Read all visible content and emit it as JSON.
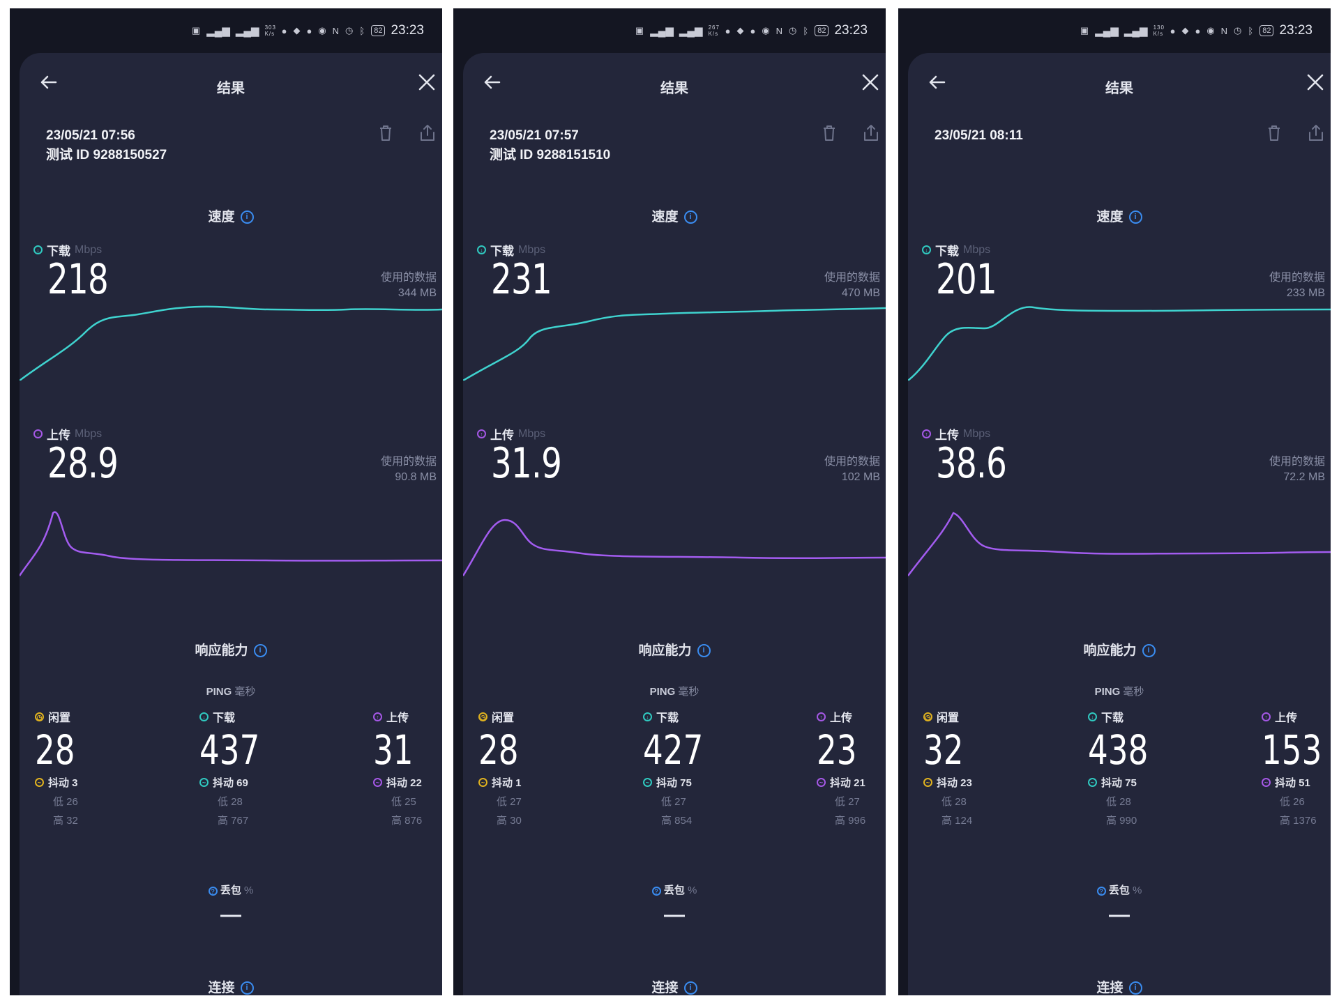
{
  "statusbar": {
    "icons": [
      "nfc-icon",
      "signal-icon",
      "signal-icon",
      "speed-icon",
      "wechat-icon",
      "shield-icon",
      "wechat-icon",
      "eye-icon",
      "n-icon",
      "alarm-icon",
      "bluetooth-icon",
      "battery-icon"
    ],
    "battery_level": "82",
    "time": "23:23"
  },
  "panels": [
    {
      "status_speed": "303 K/s",
      "nav": {
        "title": "结果"
      },
      "date": "23/05/21 07:56",
      "test_id": "测试 ID 9288150527",
      "speed_section": "速度",
      "download": {
        "label": "下载",
        "unit": "Mbps",
        "value": "218",
        "data_used_label": "使用的数据",
        "data_used": "344 MB"
      },
      "upload": {
        "label": "上传",
        "unit": "Mbps",
        "value": "28.9",
        "data_used_label": "使用的数据",
        "data_used": "90.8 MB"
      },
      "responsiveness": "响应能力",
      "ping_title": "PING",
      "ping_unit": "毫秒",
      "ping": [
        {
          "label": "闲置",
          "value": "28",
          "jitter": "抖动 3",
          "low": "低 26",
          "high": "高 32",
          "color": "#e0b21f"
        },
        {
          "label": "下载",
          "value": "437",
          "jitter": "抖动 69",
          "low": "低 28",
          "high": "高 767",
          "color": "#30c9c0"
        },
        {
          "label": "上传",
          "value": "31",
          "jitter": "抖动 22",
          "low": "低 25",
          "high": "高 876",
          "color": "#a558e6"
        }
      ],
      "loss_label": "丢包",
      "loss_unit": "%",
      "loss_value": "—",
      "connection": "连接"
    },
    {
      "status_speed": "267 K/s",
      "nav": {
        "title": "结果"
      },
      "date": "23/05/21 07:57",
      "test_id": "测试 ID 9288151510",
      "speed_section": "速度",
      "download": {
        "label": "下载",
        "unit": "Mbps",
        "value": "231",
        "data_used_label": "使用的数据",
        "data_used": "470 MB"
      },
      "upload": {
        "label": "上传",
        "unit": "Mbps",
        "value": "31.9",
        "data_used_label": "使用的数据",
        "data_used": "102 MB"
      },
      "responsiveness": "响应能力",
      "ping_title": "PING",
      "ping_unit": "毫秒",
      "ping": [
        {
          "label": "闲置",
          "value": "28",
          "jitter": "抖动 1",
          "low": "低 27",
          "high": "高 30",
          "color": "#e0b21f"
        },
        {
          "label": "下载",
          "value": "427",
          "jitter": "抖动 75",
          "low": "低 27",
          "high": "高 854",
          "color": "#30c9c0"
        },
        {
          "label": "上传",
          "value": "23",
          "jitter": "抖动 21",
          "low": "低 27",
          "high": "高 996",
          "color": "#a558e6"
        }
      ],
      "loss_label": "丢包",
      "loss_unit": "%",
      "loss_value": "—",
      "connection": "连接"
    },
    {
      "status_speed": "130 K/s",
      "nav": {
        "title": "结果"
      },
      "date": "23/05/21 08:11",
      "test_id": "",
      "speed_section": "速度",
      "download": {
        "label": "下载",
        "unit": "Mbps",
        "value": "201",
        "data_used_label": "使用的数据",
        "data_used": "233 MB"
      },
      "upload": {
        "label": "上传",
        "unit": "Mbps",
        "value": "38.6",
        "data_used_label": "使用的数据",
        "data_used": "72.2 MB"
      },
      "responsiveness": "响应能力",
      "ping_title": "PING",
      "ping_unit": "毫秒",
      "ping": [
        {
          "label": "闲置",
          "value": "32",
          "jitter": "抖动 23",
          "low": "低 28",
          "high": "高 124",
          "color": "#e0b21f"
        },
        {
          "label": "下载",
          "value": "438",
          "jitter": "抖动 75",
          "low": "低 28",
          "high": "高 990",
          "color": "#30c9c0"
        },
        {
          "label": "上传",
          "value": "153",
          "jitter": "抖动 51",
          "low": "低 26",
          "high": "高 1376",
          "color": "#a558e6"
        }
      ],
      "loss_label": "丢包",
      "loss_unit": "%",
      "loss_value": "—",
      "connection": "连接"
    }
  ],
  "colors": {
    "download_line": "#3fd3cf",
    "upload_line": "#a35cf0",
    "info": "#3a8cf0"
  }
}
